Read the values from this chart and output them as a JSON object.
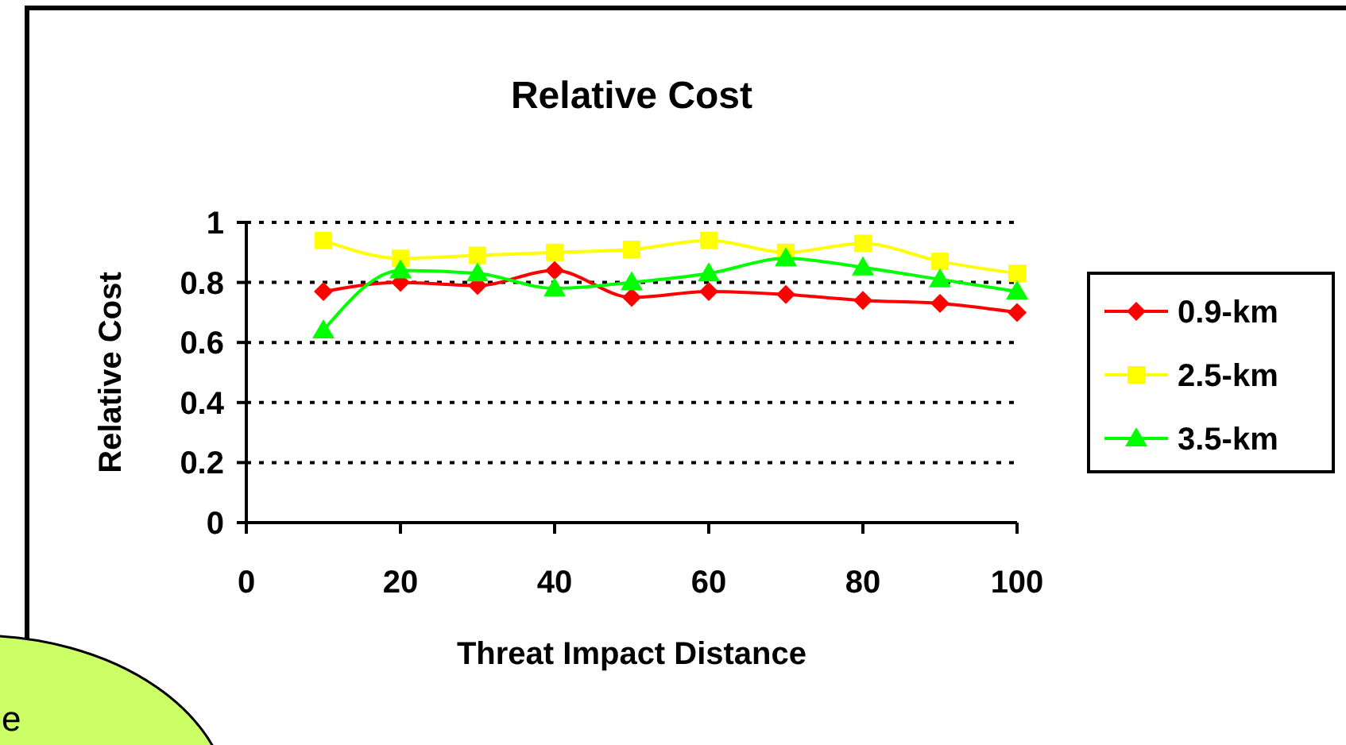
{
  "chart_data": {
    "type": "line",
    "title": "Relative Cost",
    "xlabel": "Threat Impact Distance",
    "ylabel": "Relative Cost",
    "x": [
      10,
      20,
      30,
      40,
      50,
      60,
      70,
      80,
      90,
      100
    ],
    "series": [
      {
        "name": "0.9-km",
        "color": "#ff0000",
        "marker": "diamond",
        "values": [
          0.77,
          0.8,
          0.79,
          0.84,
          0.75,
          0.77,
          0.76,
          0.74,
          0.73,
          0.7
        ]
      },
      {
        "name": "2.5-km",
        "color": "#ffff00",
        "marker": "square",
        "values": [
          0.94,
          0.88,
          0.89,
          0.9,
          0.91,
          0.94,
          0.9,
          0.93,
          0.87,
          0.83
        ]
      },
      {
        "name": "3.5-km",
        "color": "#00ff00",
        "marker": "triangle",
        "values": [
          0.64,
          0.84,
          0.83,
          0.78,
          0.8,
          0.83,
          0.88,
          0.85,
          0.81,
          0.77
        ]
      }
    ],
    "xlim": [
      0,
      100
    ],
    "xticks": [
      0,
      20,
      40,
      60,
      80,
      100
    ],
    "ylim": [
      0,
      1
    ],
    "yticks": [
      0,
      0.2,
      0.4,
      0.6,
      0.8,
      1
    ],
    "grid": "y",
    "legend": "right",
    "annotations": [
      "e"
    ]
  }
}
